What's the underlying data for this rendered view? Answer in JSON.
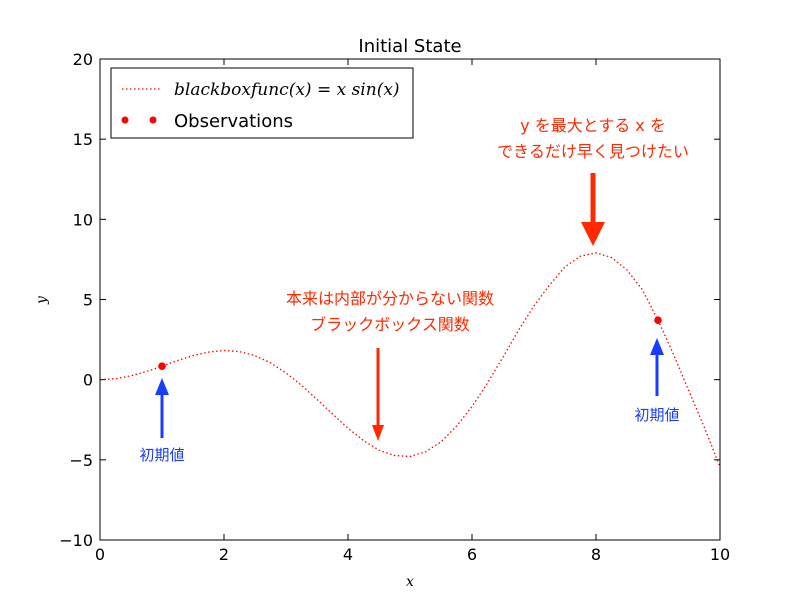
{
  "chart_data": {
    "type": "line",
    "title": "Initial State",
    "xlabel": "x",
    "ylabel": "y",
    "xlim": [
      0,
      10
    ],
    "ylim": [
      -10,
      20
    ],
    "xticks": [
      0,
      2,
      4,
      6,
      8,
      10
    ],
    "xtick_labels": [
      "0",
      "2",
      "4",
      "6",
      "8",
      "10"
    ],
    "yticks": [
      -10,
      -5,
      0,
      5,
      10,
      15,
      20
    ],
    "ytick_labels": [
      "−10",
      "−5",
      "0",
      "5",
      "10",
      "15",
      "20"
    ],
    "grid": false,
    "legend_position": "top-left",
    "series": [
      {
        "name": "blackboxfunc(x) = x sin(x)",
        "style": "dotted",
        "color": "#ff0000",
        "x": [
          0,
          0.25,
          0.5,
          0.75,
          1,
          1.25,
          1.5,
          1.75,
          2,
          2.25,
          2.5,
          2.75,
          3,
          3.25,
          3.5,
          3.75,
          4,
          4.25,
          4.5,
          4.75,
          5,
          5.25,
          5.5,
          5.75,
          6,
          6.25,
          6.5,
          6.75,
          7,
          7.25,
          7.5,
          7.75,
          8,
          8.25,
          8.5,
          8.75,
          9,
          9.25,
          9.5,
          9.75,
          10
        ],
        "y": [
          0,
          0.06,
          0.24,
          0.51,
          0.84,
          1.19,
          1.5,
          1.72,
          1.82,
          1.75,
          1.5,
          1.05,
          0.42,
          -0.35,
          -1.23,
          -2.14,
          -3.03,
          -3.8,
          -4.4,
          -4.73,
          -4.79,
          -4.5,
          -3.88,
          -2.9,
          -1.68,
          -0.21,
          1.41,
          3.08,
          4.6,
          5.9,
          7.04,
          7.7,
          7.91,
          7.62,
          6.84,
          5.6,
          3.71,
          1.58,
          -0.72,
          -3.0,
          -5.44
        ]
      },
      {
        "name": "Observations",
        "style": "markers",
        "color": "#ff0000",
        "x": [
          1,
          9
        ],
        "y": [
          0.84,
          3.71
        ]
      }
    ]
  },
  "legend": {
    "func_label": "blackboxfunc(x) = x sin(x)",
    "obs_label": "Observations"
  },
  "annotations": {
    "goal_line1": "y を最大とする x を",
    "goal_line2": "できるだけ早く見つけたい",
    "blackbox_line1": "本来は内部が分からない関数",
    "blackbox_line2": "ブラックボックス関数",
    "initial_left": "初期値",
    "initial_right": "初期値"
  },
  "colors": {
    "red_annotation": "#ff2a00",
    "blue_annotation": "#1a3cff",
    "curve": "#ff0000"
  }
}
